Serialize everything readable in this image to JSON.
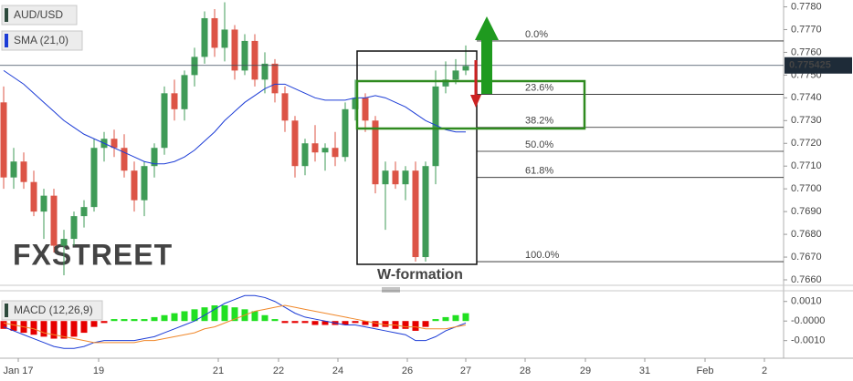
{
  "chart_data": [
    {
      "type": "candlestick",
      "symbol": "AUD/USD",
      "open": [
        0.7738,
        0.7705,
        0.7712,
        0.7703,
        0.769,
        0.7697,
        0.7675,
        0.7678,
        0.7688,
        0.7692,
        0.7718,
        0.7722,
        0.7718,
        0.7708,
        0.7695,
        0.771,
        0.7718,
        0.7742,
        0.7735,
        0.775,
        0.7758,
        0.7775,
        0.7762,
        0.777,
        0.7752,
        0.7765,
        0.7748,
        0.7755,
        0.7742,
        0.773,
        0.771,
        0.772,
        0.7716,
        0.7718,
        0.7714,
        0.7735,
        0.774,
        0.773,
        0.7702,
        0.7708,
        0.7702,
        0.7708,
        0.767,
        0.771,
        0.7745,
        0.7748,
        0.7752
      ],
      "high": [
        0.7745,
        0.7718,
        0.7716,
        0.7708,
        0.77,
        0.77,
        0.7682,
        0.769,
        0.7695,
        0.7722,
        0.7725,
        0.7726,
        0.7724,
        0.7712,
        0.7712,
        0.772,
        0.7745,
        0.7748,
        0.7752,
        0.7762,
        0.7778,
        0.7779,
        0.7782,
        0.7772,
        0.7768,
        0.7768,
        0.776,
        0.7757,
        0.7745,
        0.7732,
        0.7722,
        0.7728,
        0.772,
        0.7725,
        0.7738,
        0.7748,
        0.7742,
        0.7732,
        0.7712,
        0.7712,
        0.771,
        0.7712,
        0.7712,
        0.7752,
        0.7756,
        0.7757,
        0.7763
      ],
      "low": [
        0.77,
        0.77,
        0.77,
        0.7688,
        0.7678,
        0.7672,
        0.7662,
        0.7675,
        0.7683,
        0.769,
        0.7712,
        0.7714,
        0.7705,
        0.769,
        0.7688,
        0.7705,
        0.7715,
        0.773,
        0.773,
        0.7745,
        0.7755,
        0.7758,
        0.7756,
        0.7748,
        0.775,
        0.7745,
        0.7742,
        0.7738,
        0.7725,
        0.7705,
        0.7706,
        0.7712,
        0.7708,
        0.771,
        0.7712,
        0.773,
        0.7725,
        0.7698,
        0.7682,
        0.77,
        0.7695,
        0.7668,
        0.7668,
        0.7702,
        0.7742,
        0.7746,
        0.775
      ],
      "close": [
        0.7705,
        0.7712,
        0.7703,
        0.769,
        0.7697,
        0.7675,
        0.7678,
        0.7688,
        0.7692,
        0.7718,
        0.7722,
        0.7718,
        0.7708,
        0.7695,
        0.771,
        0.7718,
        0.7742,
        0.7735,
        0.775,
        0.7758,
        0.7775,
        0.7762,
        0.777,
        0.7752,
        0.7765,
        0.7748,
        0.7755,
        0.7742,
        0.773,
        0.771,
        0.772,
        0.7716,
        0.7718,
        0.7714,
        0.7735,
        0.774,
        0.773,
        0.7702,
        0.7708,
        0.7702,
        0.7708,
        0.767,
        0.771,
        0.7745,
        0.7748,
        0.7752,
        0.7754
      ],
      "up_color": "#3f9b57",
      "down_color": "#dc5446",
      "sma": {
        "name": "SMA (21,0)",
        "color": "#1c3cd6",
        "values": [
          0.7752,
          0.7749,
          0.7746,
          0.7742,
          0.7738,
          0.7734,
          0.773,
          0.7727,
          0.7724,
          0.7722,
          0.772,
          0.7718,
          0.7716,
          0.7714,
          0.7712,
          0.7711,
          0.7711,
          0.7712,
          0.7714,
          0.7717,
          0.7721,
          0.7725,
          0.773,
          0.7734,
          0.7738,
          0.7741,
          0.7744,
          0.7746,
          0.7746,
          0.7744,
          0.7742,
          0.774,
          0.7739,
          0.7739,
          0.7739,
          0.774,
          0.774,
          0.7741,
          0.774,
          0.7738,
          0.7736,
          0.7733,
          0.773,
          0.7728,
          0.7726,
          0.7725,
          0.7725
        ]
      },
      "last_price": 0.775425,
      "fib_levels": [
        {
          "value": 0.7765,
          "label": "0.0%"
        },
        {
          "value": 0.77415,
          "label": "23.6%"
        },
        {
          "value": 0.7727,
          "label": "38.2%"
        },
        {
          "value": 0.77165,
          "label": "50.0%"
        },
        {
          "value": 0.7705,
          "label": "61.8%"
        },
        {
          "value": 0.7668,
          "label": "100.0%"
        }
      ],
      "annotation": "W-formation",
      "watermark": "FXSTREET",
      "ylim": [
        0.7658,
        0.7783
      ],
      "yticks": [
        {
          "value": 0.778,
          "label": "0.7780"
        },
        {
          "value": 0.777,
          "label": "0.7770"
        },
        {
          "value": 0.776,
          "label": "0.7760"
        },
        {
          "value": 0.775,
          "label": "0.7750"
        },
        {
          "value": 0.774,
          "label": "0.7740"
        },
        {
          "value": 0.773,
          "label": "0.7730"
        },
        {
          "value": 0.772,
          "label": "0.7720"
        },
        {
          "value": 0.771,
          "label": "0.7710"
        },
        {
          "value": 0.77,
          "label": "0.7700"
        },
        {
          "value": 0.769,
          "label": "0.7690"
        },
        {
          "value": 0.768,
          "label": "0.7680"
        },
        {
          "value": 0.767,
          "label": "0.7670"
        },
        {
          "value": 0.766,
          "label": "0.7660"
        }
      ],
      "xtick_labels": [
        "Jan 17",
        "19",
        "21",
        "22",
        "24",
        "26",
        "27",
        "28",
        "29",
        "31",
        "Feb",
        "2"
      ]
    },
    {
      "type": "macd",
      "name": "MACD (12,26,9)",
      "histogram": [
        -0.0004,
        -0.0005,
        -0.0006,
        -0.0007,
        -0.0008,
        -0.0009,
        -0.0009,
        -0.0008,
        -0.0006,
        -0.0003,
        -0.0001,
        0.0001,
        0.0001,
        0.0001,
        0.0001,
        0.0002,
        0.0003,
        0.0004,
        0.0005,
        0.0006,
        0.0007,
        0.0008,
        0.0008,
        0.0007,
        0.0006,
        0.0005,
        0.0003,
        0.0001,
        -0.0001,
        -0.0001,
        -0.0001,
        -0.0002,
        -0.0002,
        -0.0002,
        -0.0002,
        -0.0001,
        -0.0002,
        -0.0003,
        -0.0003,
        -0.0004,
        -0.0004,
        -0.0005,
        -0.0003,
        0.0001,
        0.0002,
        0.0003,
        0.0004
      ],
      "macd": [
        -0.0003,
        -0.0005,
        -0.0007,
        -0.0009,
        -0.0011,
        -0.0013,
        -0.0014,
        -0.0014,
        -0.0013,
        -0.0011,
        -0.001,
        -0.001,
        -0.001,
        -0.001,
        -0.0009,
        -0.0008,
        -0.0006,
        -0.0004,
        -0.0002,
        0.0,
        0.0003,
        0.0006,
        0.0009,
        0.0011,
        0.0013,
        0.0013,
        0.0012,
        0.001,
        0.0007,
        0.0004,
        0.0002,
        0.0001,
        0.0,
        -0.0001,
        -0.0002,
        -0.0002,
        -0.0003,
        -0.0004,
        -0.0005,
        -0.0006,
        -0.0007,
        -0.001,
        -0.001,
        -0.0008,
        -0.0005,
        -0.0003,
        -0.0001
      ],
      "signal": [
        -0.0001,
        -0.0002,
        -0.0003,
        -0.0004,
        -0.0006,
        -0.0007,
        -0.0008,
        -0.0009,
        -0.001,
        -0.0011,
        -0.0011,
        -0.0011,
        -0.0011,
        -0.0011,
        -0.001,
        -0.001,
        -0.0009,
        -0.0008,
        -0.0007,
        -0.0006,
        -0.0004,
        -0.0003,
        -0.0001,
        0.0001,
        0.0003,
        0.0005,
        0.0006,
        0.0007,
        0.0008,
        0.0007,
        0.0006,
        0.0005,
        0.0004,
        0.0003,
        0.0002,
        0.0001,
        0.0,
        -0.0001,
        -0.0002,
        -0.0002,
        -0.0003,
        -0.0003,
        -0.0004,
        -0.0004,
        -0.0004,
        -0.0003,
        -0.0002
      ],
      "up_color": "#22e022",
      "down_color": "#e60000",
      "macd_color": "#1c3cd6",
      "signal_color": "#f0882a",
      "ylim": [
        -0.0019,
        0.0015
      ],
      "yticks": [
        {
          "value": 0.001,
          "label": "0.0010"
        },
        {
          "value": 0,
          "label": "-0.0000"
        },
        {
          "value": -0.001,
          "label": "-0.0010"
        }
      ]
    }
  ]
}
